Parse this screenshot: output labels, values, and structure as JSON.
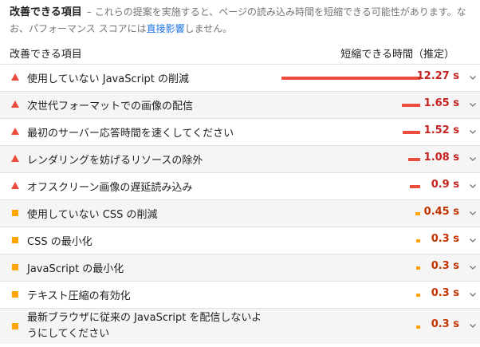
{
  "intro": {
    "title": "改善できる項目",
    "dash": "–",
    "text_before_link": "これらの提案を実施すると、ページの読み込み時間を短縮できる可能性があります。なお、パフォーマンス スコアには",
    "link": "直接影響",
    "text_after_link": "しません。"
  },
  "header": {
    "left": "改善できる項目",
    "right": "短縮できる時間（推定）"
  },
  "items": [
    {
      "label": "使用していない JavaScript の削減",
      "value": "12.27 s",
      "seconds": 12.27,
      "severity": "fail"
    },
    {
      "label": "次世代フォーマットでの画像の配信",
      "value": "1.65 s",
      "seconds": 1.65,
      "severity": "fail"
    },
    {
      "label": "最初のサーバー応答時間を速くしてください",
      "value": "1.52 s",
      "seconds": 1.52,
      "severity": "fail"
    },
    {
      "label": "レンダリングを妨げるリソースの除外",
      "value": "1.08 s",
      "seconds": 1.08,
      "severity": "fail"
    },
    {
      "label": "オフスクリーン画像の遅延読み込み",
      "value": "0.9 s",
      "seconds": 0.9,
      "severity": "fail"
    },
    {
      "label": "使用していない CSS の削減",
      "value": "0.45 s",
      "seconds": 0.45,
      "severity": "average"
    },
    {
      "label": "CSS の最小化",
      "value": "0.3 s",
      "seconds": 0.3,
      "severity": "average"
    },
    {
      "label": "JavaScript の最小化",
      "value": "0.3 s",
      "seconds": 0.3,
      "severity": "average"
    },
    {
      "label": "テキスト圧縮の有効化",
      "value": "0.3 s",
      "seconds": 0.3,
      "severity": "average"
    },
    {
      "label": "最新ブラウザに従来の JavaScript を配信しないようにしてください",
      "value": "0.3 s",
      "seconds": 0.3,
      "severity": "average"
    }
  ],
  "colors": {
    "fail": "#eb4d3d",
    "average": "#ffa400",
    "fail_text": "#c5221f",
    "average_text": "#c33300",
    "link": "#1a73e8"
  },
  "icons": {
    "fail": "triangle-icon",
    "average": "square-icon",
    "expand": "chevron-down-icon"
  }
}
